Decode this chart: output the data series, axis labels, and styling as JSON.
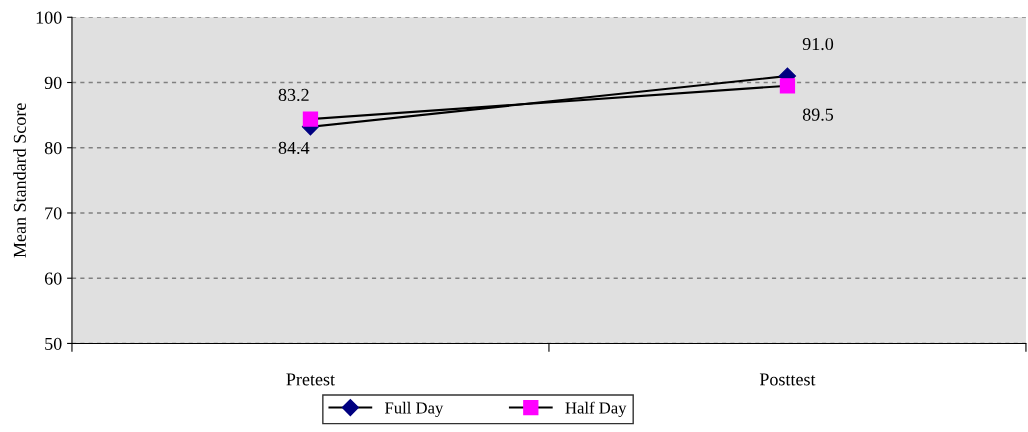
{
  "chart_data": {
    "type": "line",
    "ylabel": "Mean Standard Score",
    "categories": [
      "Pretest",
      "Posttest"
    ],
    "series": [
      {
        "name": "Full Day",
        "color": "#000080",
        "marker": "diamond",
        "values": [
          83.2,
          91.0
        ],
        "value_labels": [
          "83.2",
          "91.0"
        ]
      },
      {
        "name": "Half Day",
        "color": "#ff00ff",
        "marker": "square",
        "values": [
          84.4,
          89.5
        ],
        "value_labels": [
          "84.4",
          "89.5"
        ]
      }
    ],
    "ylim": [
      50,
      100
    ],
    "yticks": [
      50,
      60,
      70,
      80,
      90,
      100
    ],
    "grid": "y",
    "legend": "bottom",
    "line_style": "solid"
  }
}
